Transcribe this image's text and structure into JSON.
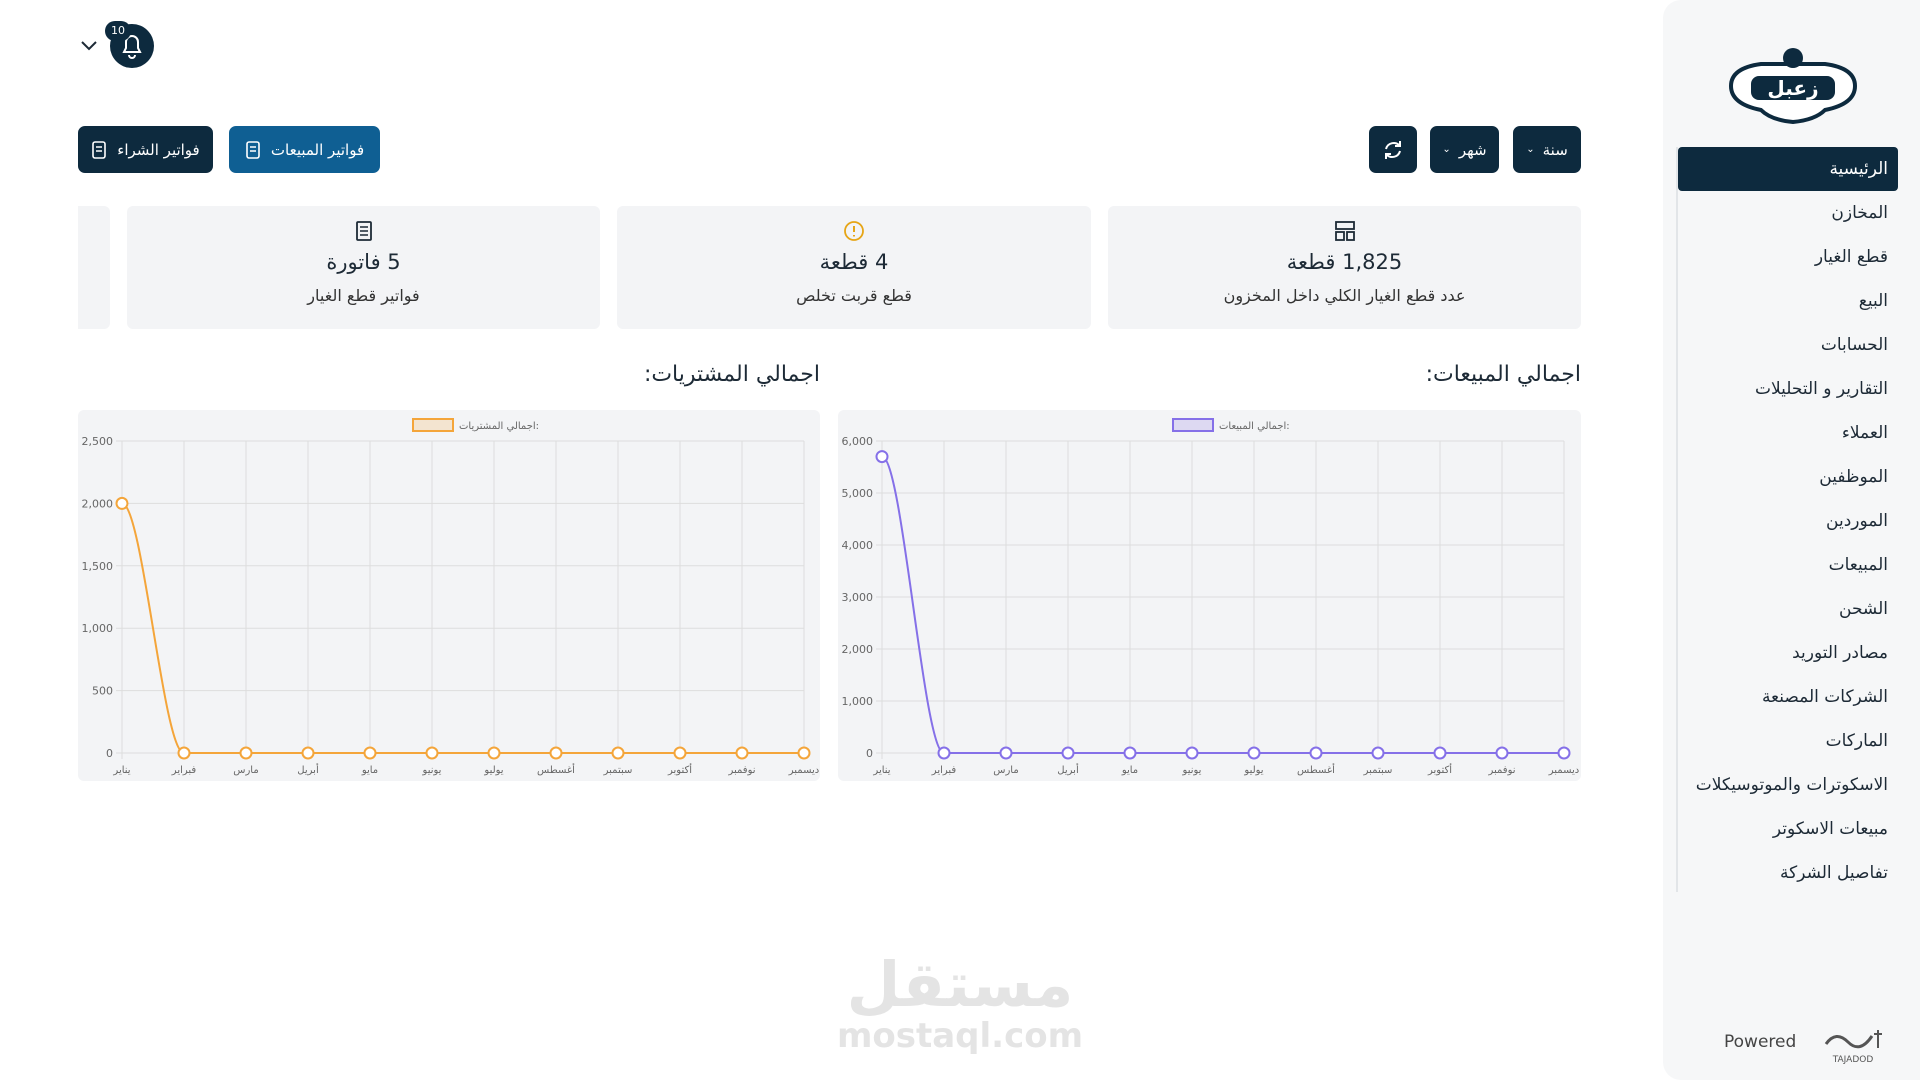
{
  "header": {
    "notification_count": 10
  },
  "toolbar": {
    "filters": [
      "سنة",
      "شهر"
    ],
    "buttons": [
      "فواتير المبيعات",
      "فواتير الشراء"
    ]
  },
  "cards": [
    {
      "value": "1,825 قطعة",
      "label": "عدد قطع الغيار الكلي داخل المخزون"
    },
    {
      "value": "4 قطعة",
      "label": "قطع قربت تخلص"
    },
    {
      "value": "5 فاتورة",
      "label": "فواتير قطع الغيار"
    }
  ],
  "sidebar": {
    "logo": "زعبل",
    "menu": [
      "الرئيسية",
      "المخازن",
      "قطع الغيار",
      "البيع",
      "الحسابات",
      "التقارير و التحليلات",
      "العملاء",
      "الموظفين",
      "الموردين",
      "المبيعات",
      "الشحن",
      "مصادر التوريد",
      "الشركات المصنعة",
      "الماركات",
      "الاسكوترات والموتوسيكلات",
      "مبيعات الاسكوتر",
      "تفاصيل الشركة"
    ],
    "powered": "Powered",
    "brand": "TAJADOD"
  },
  "watermark": {
    "arabic": "مستقل",
    "latin": "mostaql.com"
  },
  "chart_data": [
    {
      "type": "line",
      "title": "اجمالي المبيعات:",
      "categories": [
        "يناير",
        "فبراير",
        "مارس",
        "أبريل",
        "مايو",
        "يونيو",
        "يوليو",
        "أغسطس",
        "سبتمبر",
        "أكتوبر",
        "نوفمبر",
        "ديسمبر"
      ],
      "series": [
        {
          "name": "اجمالي المبيعات:",
          "color": "#8570e8",
          "values": [
            5700,
            0,
            0,
            0,
            0,
            0,
            0,
            0,
            0,
            0,
            0,
            0
          ]
        }
      ],
      "ylim": [
        0,
        6000
      ],
      "yticks": [
        0,
        {
          "value": 1000,
          "label": "1,000"
        },
        {
          "value": 2000,
          "label": "2,000"
        },
        {
          "value": 3000,
          "label": "3,000"
        },
        {
          "value": 4000,
          "label": "4,000"
        },
        {
          "value": 5000,
          "label": "5,000"
        },
        {
          "value": 6000,
          "label": "6,000"
        }
      ],
      "grid": true
    },
    {
      "type": "line",
      "title": "اجمالي المشتريات:",
      "categories": [
        "يناير",
        "فبراير",
        "مارس",
        "أبريل",
        "مايو",
        "يونيو",
        "يوليو",
        "أغسطس",
        "سبتمبر",
        "أكتوبر",
        "نوفمبر",
        "ديسمبر"
      ],
      "series": [
        {
          "name": "اجمالي المشتريات:",
          "color": "#f4a53a",
          "values": [
            2000,
            0,
            0,
            0,
            0,
            0,
            0,
            0,
            0,
            0,
            0,
            0
          ]
        }
      ],
      "ylim": [
        0,
        2500
      ],
      "yticks": [
        0,
        500,
        {
          "value": 1000,
          "label": "1,000"
        },
        {
          "value": 1500,
          "label": "1,500"
        },
        {
          "value": 2000,
          "label": "2,000"
        },
        {
          "value": 2500,
          "label": "2,500"
        }
      ],
      "grid": true
    }
  ]
}
